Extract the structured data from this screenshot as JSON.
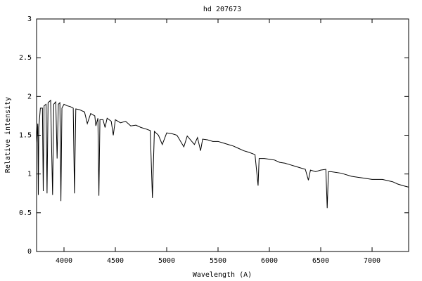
{
  "chart_data": {
    "type": "line",
    "title": "hd 207673",
    "x_label": "Wavelength (A)",
    "y_label": "Relative intensity",
    "x": [
      3733,
      3745,
      3750,
      3755,
      3770,
      3790,
      3798,
      3806,
      3825,
      3835,
      3845,
      3870,
      3889,
      3900,
      3920,
      3933,
      3945,
      3960,
      3970,
      3980,
      4000,
      4030,
      4060,
      4090,
      4102,
      4115,
      4150,
      4200,
      4227,
      4260,
      4300,
      4310,
      4330,
      4340,
      4350,
      4380,
      4400,
      4420,
      4460,
      4480,
      4500,
      4550,
      4600,
      4650,
      4700,
      4750,
      4800,
      4840,
      4861,
      4880,
      4920,
      4957,
      5000,
      5050,
      5100,
      5167,
      5200,
      5270,
      5300,
      5330,
      5350,
      5400,
      5450,
      5500,
      5550,
      5600,
      5650,
      5700,
      5750,
      5800,
      5860,
      5890,
      5900,
      5950,
      6000,
      6050,
      6100,
      6150,
      6200,
      6250,
      6300,
      6350,
      6380,
      6400,
      6450,
      6500,
      6550,
      6563,
      6575,
      6600,
      6700,
      6800,
      6900,
      7000,
      7100,
      7200,
      7250,
      7300,
      7356
    ],
    "series": [
      {
        "name": "hd 207673",
        "color": "#000000",
        "values": [
          1.4,
          1.65,
          0.73,
          1.6,
          1.85,
          1.85,
          0.78,
          1.88,
          1.9,
          0.75,
          1.92,
          1.95,
          0.73,
          1.9,
          1.93,
          1.2,
          1.9,
          1.92,
          0.65,
          1.85,
          1.9,
          1.88,
          1.87,
          1.85,
          0.75,
          1.84,
          1.83,
          1.8,
          1.65,
          1.78,
          1.75,
          1.62,
          1.72,
          0.72,
          1.7,
          1.7,
          1.6,
          1.72,
          1.68,
          1.5,
          1.7,
          1.66,
          1.68,
          1.62,
          1.63,
          1.6,
          1.58,
          1.56,
          0.69,
          1.55,
          1.5,
          1.38,
          1.53,
          1.52,
          1.5,
          1.35,
          1.49,
          1.38,
          1.47,
          1.3,
          1.45,
          1.44,
          1.42,
          1.42,
          1.4,
          1.38,
          1.36,
          1.33,
          1.3,
          1.28,
          1.25,
          0.85,
          1.2,
          1.2,
          1.19,
          1.18,
          1.15,
          1.14,
          1.12,
          1.1,
          1.08,
          1.06,
          0.92,
          1.05,
          1.03,
          1.05,
          1.06,
          0.56,
          1.03,
          1.03,
          1.01,
          0.97,
          0.95,
          0.93,
          0.93,
          0.9,
          0.87,
          0.85,
          0.83
        ]
      }
    ],
    "xlim": [
      3733,
      7356
    ],
    "xticks": [
      4000,
      4500,
      5000,
      5500,
      6000,
      6500,
      7000
    ],
    "ylim": [
      0,
      3
    ],
    "yticks": [
      0,
      0.5,
      1,
      1.5,
      2,
      2.5,
      3
    ],
    "grid": false
  }
}
